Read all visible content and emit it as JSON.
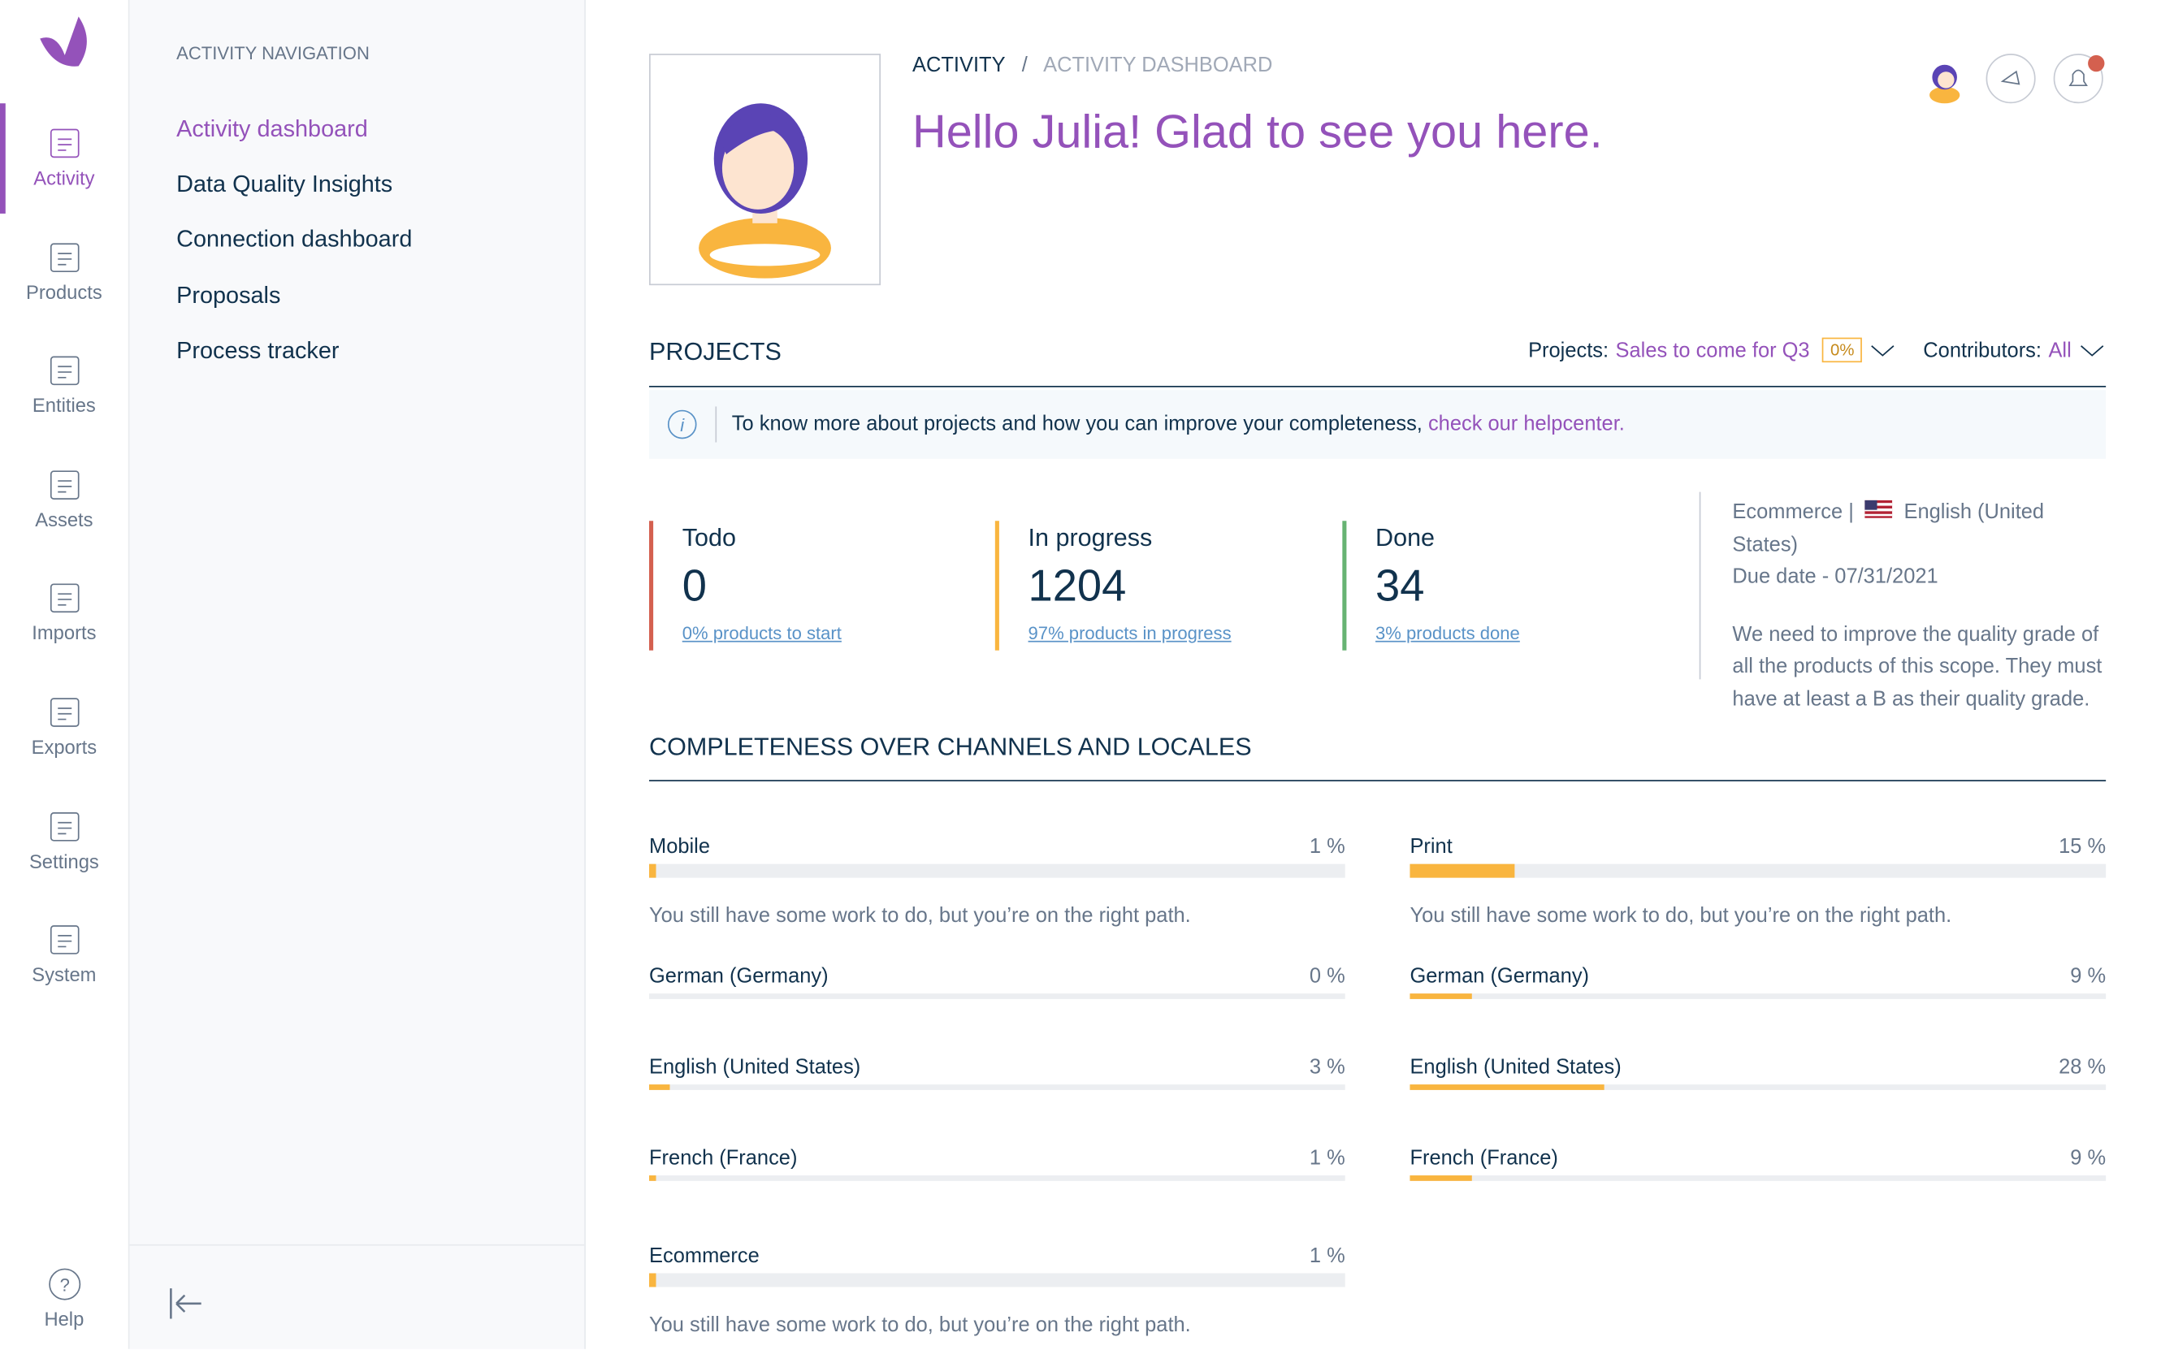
{
  "sidebar": {
    "items": [
      "Activity",
      "Products",
      "Entities",
      "Assets",
      "Imports",
      "Exports",
      "Settings",
      "System"
    ],
    "help": "Help"
  },
  "navigation": {
    "title": "ACTIVITY NAVIGATION",
    "items": [
      "Activity dashboard",
      "Data Quality Insights",
      "Connection dashboard",
      "Proposals",
      "Process tracker"
    ]
  },
  "breadcrumb": [
    "ACTIVITY",
    "/",
    "ACTIVITY DASHBOARD"
  ],
  "greeting": "Hello Julia! Glad to see you here.",
  "projects": {
    "title": "PROJECTS",
    "project_label": "Projects:",
    "project_name": "Sales to come for Q3",
    "project_badge": "0%",
    "contributors_label": "Contributors:",
    "contributors_value": "All",
    "info": "To know more about projects and how you can improve your completeness,",
    "info_link": "check our helpcenter.",
    "stats": [
      {
        "label": "Todo",
        "value": 0,
        "link": "0% products to start"
      },
      {
        "label": "In progress",
        "value": 1204,
        "link": "97% products in progress"
      },
      {
        "label": "Done",
        "value": 34,
        "link": "3% products done"
      }
    ],
    "details": {
      "channel": "Ecommerce |",
      "locale": "English (United States)",
      "due": "Due date - 07/31/2021",
      "description": "We need to improve the quality grade of all the products of this scope. They must have at least a B as their quality grade."
    }
  },
  "completeness": {
    "title": "COMPLETENESS OVER CHANNELS AND LOCALES",
    "channels": [
      {
        "name": "Mobile",
        "percent": {
          "value": 1,
          "label": "1 %"
        },
        "message": "You still have some work to do, but you’re on the right path.",
        "locales": [
          {
            "name": "German (Germany)",
            "percent": {
              "value": 0,
              "label": "0 %"
            }
          },
          {
            "name": "English (United States)",
            "percent": {
              "value": 3,
              "label": "3 %"
            }
          },
          {
            "name": "French (France)",
            "percent": {
              "value": 1,
              "label": "1 %"
            }
          }
        ]
      },
      {
        "name": "Print",
        "percent": {
          "value": 15,
          "label": "15 %"
        },
        "message": "You still have some work to do, but you’re on the right path.",
        "locales": [
          {
            "name": "German (Germany)",
            "percent": {
              "value": 9,
              "label": "9 %"
            }
          },
          {
            "name": "English (United States)",
            "percent": {
              "value": 28,
              "label": "28 %"
            }
          },
          {
            "name": "French (France)",
            "percent": {
              "value": 9,
              "label": "9 %"
            }
          }
        ]
      },
      {
        "name": "Ecommerce",
        "percent": {
          "value": 1,
          "label": "1 %"
        },
        "message": "You still have some work to do, but you’re on the right path.",
        "locales": []
      }
    ]
  }
}
